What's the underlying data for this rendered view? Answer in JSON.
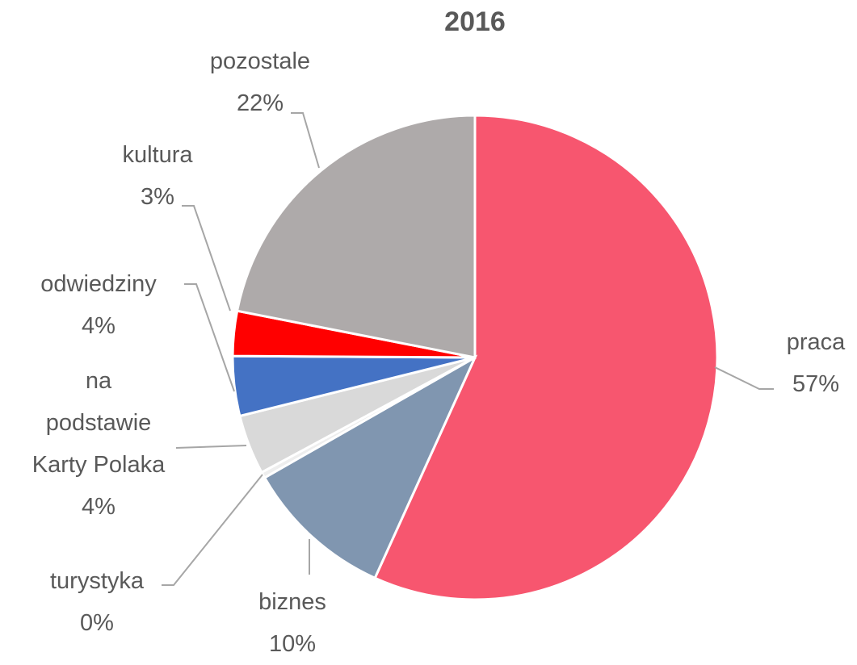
{
  "chart_data": {
    "type": "pie",
    "title": "2016",
    "categories": [
      "praca",
      "biznes",
      "turystyka",
      "na\npodstawie\nKarty Polaka",
      "odwiedziny",
      "kultura",
      "pozostale"
    ],
    "values": [
      57,
      10,
      0.4,
      4,
      4,
      3,
      22
    ],
    "value_labels": [
      "57%",
      "10%",
      "0%",
      "4%",
      "4%",
      "3%",
      "22%"
    ],
    "colors": [
      "#f7566f",
      "#8096b0",
      "#eeeeee",
      "#d9d9d9",
      "#4472c4",
      "#ff0000",
      "#aeaaaa"
    ]
  }
}
